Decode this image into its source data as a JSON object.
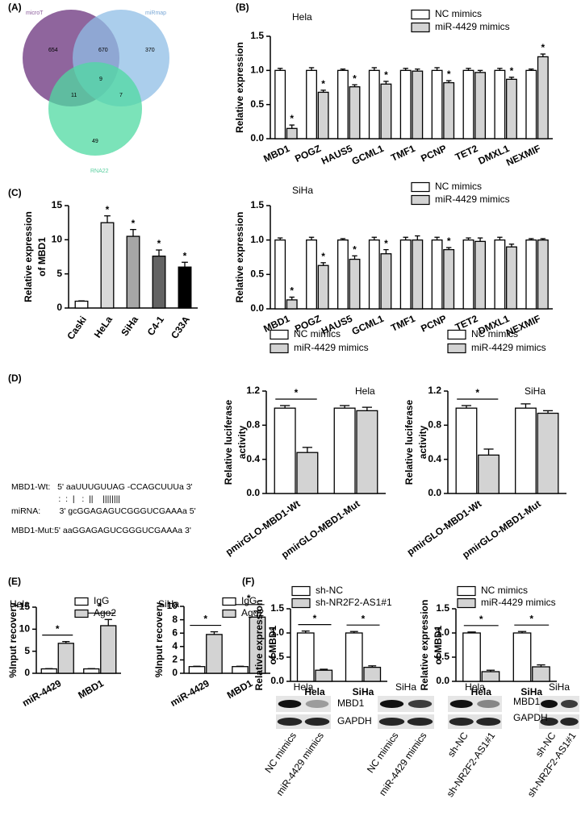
{
  "panel_labels": [
    "(A)",
    "(B)",
    "(C)",
    "(D)",
    "(E)",
    "(F)"
  ],
  "venn": {
    "sets": [
      "microT",
      "miRmap",
      "RNA22"
    ],
    "counts": [
      654,
      670,
      370,
      9,
      11,
      7,
      49
    ]
  },
  "sequence": {
    "lines": [
      "MBD1-Wt:   5' aaUUUGUUAG -CCAGCUUUa 3'",
      "                    :  :  |   :  ||    ||||||||",
      "miRNA:        3' gcGGAGAGUCGGGUCGAAAa 5'",
      "MBD1-Mut:5' aaGGAGAGUCGGGUCGAAAa 3'"
    ]
  },
  "blots": {
    "cells": [
      "Hela",
      "SiHa",
      "Hela",
      "SiHa"
    ],
    "proteins": [
      "MBD1",
      "GAPDH",
      "MBD1",
      "GAPDH"
    ],
    "lanes": [
      "NC mimics",
      "miR-4429 mimics",
      "NC mimics",
      "miR-4429 mimics",
      "sh-NC",
      "sh-NR2F2-AS1#1",
      "sh-NC",
      "sh-NR2F2-AS1#1"
    ]
  },
  "chart_data": [
    {
      "type": "bar",
      "title": "Hela",
      "ylabel": [
        "Relative expression"
      ],
      "categories": [
        "MBD1",
        "POGZ",
        "HAUS5",
        "GCML1",
        "TMF1",
        "PCNP",
        "TET2",
        "DMXL1",
        "NEXMIF"
      ],
      "series": [
        {
          "name": "NC mimics",
          "color": "#ffffff",
          "values": [
            1,
            1,
            1,
            1,
            1,
            1,
            1,
            1,
            1
          ],
          "errors": [
            0.03,
            0.04,
            0.02,
            0.04,
            0.03,
            0.04,
            0.03,
            0.03,
            0.02
          ]
        },
        {
          "name": "miR-4429 mimics",
          "color": "#d3d3d3",
          "values": [
            0.15,
            0.68,
            0.76,
            0.8,
            0.99,
            0.82,
            0.97,
            0.87,
            1.2
          ],
          "errors": [
            0.05,
            0.03,
            0.03,
            0.04,
            0.03,
            0.03,
            0.03,
            0.03,
            0.04
          ],
          "significance": [
            "*",
            "*",
            "*",
            "*",
            null,
            "*",
            null,
            "*",
            "*"
          ]
        }
      ],
      "ylim": [
        0,
        1.5
      ],
      "yticks": [
        {
          "value": 0,
          "label": "0.0"
        },
        0.5,
        {
          "value": 1,
          "label": "1.0"
        },
        1.5
      ]
    },
    {
      "type": "bar",
      "title": "SiHa",
      "ylabel": [
        "Relative expression"
      ],
      "categories": [
        "MBD1",
        "POGZ",
        "HAUS5",
        "GCML1",
        "TMF1",
        "PCNP",
        "TET2",
        "DMXL1",
        "NEXMIF"
      ],
      "series": [
        {
          "name": "NC mimics",
          "color": "#ffffff",
          "values": [
            1,
            1,
            1,
            1,
            1,
            1,
            1,
            1,
            1
          ],
          "errors": [
            0.03,
            0.04,
            0.02,
            0.04,
            0.04,
            0.04,
            0.03,
            0.04,
            0.02
          ]
        },
        {
          "name": "miR-4429 mimics",
          "color": "#d3d3d3",
          "values": [
            0.13,
            0.63,
            0.72,
            0.8,
            1.0,
            0.86,
            0.98,
            0.9,
            1.0
          ],
          "errors": [
            0.04,
            0.04,
            0.05,
            0.06,
            0.06,
            0.03,
            0.05,
            0.04,
            0.02
          ],
          "significance": [
            "*",
            "*",
            "*",
            "*",
            null,
            "*",
            null,
            null,
            null
          ]
        }
      ],
      "ylim": [
        0,
        1.5
      ],
      "yticks": [
        {
          "value": 0,
          "label": "0.0"
        },
        0.5,
        {
          "value": 1,
          "label": "1.0"
        },
        1.5
      ]
    },
    {
      "type": "bar",
      "ylabel": [
        "Relative expression",
        "of MBD1"
      ],
      "categories": [
        "Caski",
        "HeLa",
        "SiHa",
        "C4-1",
        "C33A"
      ],
      "values": [
        1,
        12.5,
        10.5,
        7.6,
        6.0
      ],
      "errors": [
        0.05,
        1.0,
        1.0,
        0.9,
        0.7
      ],
      "colors": [
        "#ffffff",
        "#d9d9d9",
        "#a6a6a6",
        "#636363",
        "#000000"
      ],
      "significance": [
        null,
        "*",
        "*",
        "*",
        "*"
      ],
      "ylim": [
        0,
        15
      ],
      "yticks": [
        0,
        5,
        10,
        15
      ]
    },
    {
      "type": "bar",
      "title": "Hela",
      "ylabel": [
        "Relative luciferase",
        "activity"
      ],
      "categories": [
        "pmirGLO-MBD1-Wt",
        "pmirGLO-MBD1-Mut"
      ],
      "series": [
        {
          "name": "NC mimics",
          "color": "#ffffff",
          "values": [
            1.0,
            1.0
          ],
          "errors": [
            0.03,
            0.03
          ]
        },
        {
          "name": "miR-4429 mimics",
          "color": "#d3d3d3",
          "values": [
            0.48,
            0.97
          ],
          "errors": [
            0.06,
            0.04
          ]
        }
      ],
      "brackets": [
        "*",
        null
      ],
      "ylim": [
        0,
        1.2
      ],
      "yticks": [
        {
          "value": 0,
          "label": "0.0"
        },
        0.4,
        0.8,
        1.2
      ]
    },
    {
      "type": "bar",
      "title": "SiHa",
      "ylabel": [
        "Relative luciferase",
        "activity"
      ],
      "categories": [
        "pmirGLO-MBD1-Wt",
        "pmirGLO-MBD1-Mut"
      ],
      "series": [
        {
          "name": "NC mimics",
          "color": "#ffffff",
          "values": [
            1.0,
            1.0
          ],
          "errors": [
            0.03,
            0.05
          ]
        },
        {
          "name": "miR-4429 mimics",
          "color": "#d3d3d3",
          "values": [
            0.45,
            0.94
          ],
          "errors": [
            0.07,
            0.03
          ]
        }
      ],
      "brackets": [
        "*",
        null
      ],
      "ylim": [
        0,
        1.2
      ],
      "yticks": [
        {
          "value": 0,
          "label": "0.0"
        },
        0.4,
        0.8,
        1.2
      ]
    },
    {
      "type": "bar",
      "title": "Hela",
      "ylabel": [
        "%Input recovery"
      ],
      "categories": [
        "miR-4429",
        "MBD1"
      ],
      "series": [
        {
          "name": "IgG",
          "color": "#ffffff",
          "values": [
            1,
            1
          ],
          "errors": [
            0.05,
            0.05
          ]
        },
        {
          "name": "Ago2",
          "color": "#d3d3d3",
          "values": [
            6.8,
            10.8
          ],
          "errors": [
            0.4,
            1.4
          ]
        }
      ],
      "brackets": [
        "*",
        "*"
      ],
      "ylim": [
        0,
        15
      ],
      "yticks": [
        0,
        5,
        10,
        15
      ]
    },
    {
      "type": "bar",
      "title": "SiHa",
      "ylabel": [
        "%Input recovery"
      ],
      "categories": [
        "miR-4429",
        "MBD1"
      ],
      "series": [
        {
          "name": "IgG",
          "color": "#ffffff",
          "values": [
            1,
            1
          ],
          "errors": [
            0.05,
            0.05
          ]
        },
        {
          "name": "Ago2",
          "color": "#d3d3d3",
          "values": [
            5.8,
            8.4
          ],
          "errors": [
            0.4,
            0.9
          ]
        }
      ],
      "brackets": [
        "*",
        "*"
      ],
      "ylim": [
        0,
        10
      ],
      "yticks": [
        0,
        2,
        4,
        6,
        8,
        10
      ]
    },
    {
      "type": "bar",
      "ylabel": [
        "Relative expression",
        "of MBD1"
      ],
      "categories": [
        "Hela",
        "SiHa"
      ],
      "series": [
        {
          "name": "sh-NC",
          "color": "#ffffff",
          "values": [
            1.0,
            1.0
          ],
          "errors": [
            0.04,
            0.03
          ]
        },
        {
          "name": "sh-NR2F2-AS1#1",
          "color": "#d3d3d3",
          "values": [
            0.23,
            0.29
          ],
          "errors": [
            0.02,
            0.03
          ]
        }
      ],
      "brackets": [
        "*",
        "*"
      ],
      "ylim": [
        0,
        1.5
      ],
      "yticks": [
        {
          "value": 0,
          "label": "0.0"
        },
        0.5,
        {
          "value": 1,
          "label": "1.0"
        },
        1.5
      ]
    },
    {
      "type": "bar",
      "ylabel": [
        "Relative expression",
        "of MBD1"
      ],
      "categories": [
        "Hela",
        "SiHa"
      ],
      "series": [
        {
          "name": "NC mimics",
          "color": "#ffffff",
          "values": [
            1.0,
            1.0
          ],
          "errors": [
            0.02,
            0.03
          ]
        },
        {
          "name": "miR-4429 mimics",
          "color": "#d3d3d3",
          "values": [
            0.2,
            0.3
          ],
          "errors": [
            0.03,
            0.04
          ]
        }
      ],
      "brackets": [
        "*",
        "*"
      ],
      "ylim": [
        0,
        1.5
      ],
      "yticks": [
        {
          "value": 0,
          "label": "0.0"
        },
        0.5,
        {
          "value": 1,
          "label": "1.0"
        },
        1.5
      ]
    }
  ]
}
